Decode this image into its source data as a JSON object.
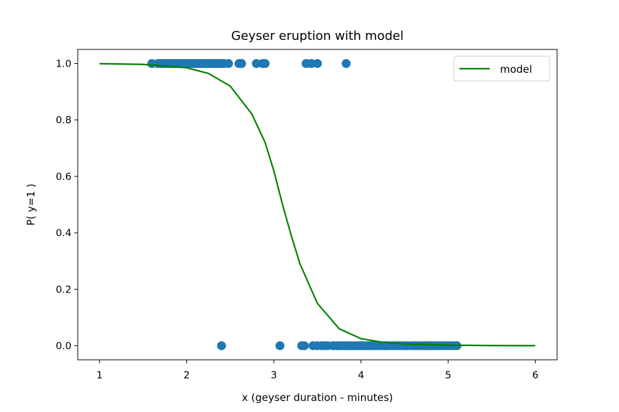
{
  "chart_data": {
    "type": "scatter",
    "title": "Geyser eruption with model",
    "xlabel": "x (geyser duration - minutes)",
    "ylabel": "P( y=1 )",
    "xlim": [
      0.75,
      6.25
    ],
    "ylim": [
      -0.05,
      1.05
    ],
    "xticks": [
      1,
      2,
      3,
      4,
      5,
      6
    ],
    "yticks": [
      0.0,
      0.2,
      0.4,
      0.6,
      0.8,
      1.0
    ],
    "xtick_labels": [
      "1",
      "2",
      "3",
      "4",
      "5",
      "6"
    ],
    "ytick_labels": [
      "0.0",
      "0.2",
      "0.4",
      "0.6",
      "0.8",
      "1.0"
    ],
    "grid": false,
    "legend": {
      "position": "top-right",
      "entries": [
        "model"
      ]
    },
    "colors": {
      "points": "#1f77b4",
      "model": "#008000"
    },
    "series": [
      {
        "type": "scatter",
        "points": [
          [
            1.6,
            1
          ],
          [
            1.67,
            1
          ],
          [
            1.7,
            1
          ],
          [
            1.73,
            1
          ],
          [
            1.75,
            1
          ],
          [
            1.78,
            1
          ],
          [
            1.8,
            1
          ],
          [
            1.83,
            1
          ],
          [
            1.85,
            1
          ],
          [
            1.87,
            1
          ],
          [
            1.9,
            1
          ],
          [
            1.92,
            1
          ],
          [
            1.95,
            1
          ],
          [
            1.97,
            1
          ],
          [
            2.0,
            1
          ],
          [
            2.03,
            1
          ],
          [
            2.05,
            1
          ],
          [
            2.08,
            1
          ],
          [
            2.1,
            1
          ],
          [
            2.13,
            1
          ],
          [
            2.15,
            1
          ],
          [
            2.17,
            1
          ],
          [
            2.2,
            1
          ],
          [
            2.23,
            1
          ],
          [
            2.25,
            1
          ],
          [
            2.27,
            1
          ],
          [
            2.3,
            1
          ],
          [
            2.33,
            1
          ],
          [
            2.35,
            1
          ],
          [
            2.38,
            1
          ],
          [
            2.4,
            1
          ],
          [
            2.43,
            1
          ],
          [
            2.48,
            1
          ],
          [
            2.6,
            1
          ],
          [
            2.63,
            1
          ],
          [
            2.8,
            1
          ],
          [
            2.87,
            1
          ],
          [
            2.9,
            1
          ],
          [
            3.37,
            1
          ],
          [
            3.43,
            1
          ],
          [
            3.5,
            1
          ],
          [
            3.83,
            1
          ],
          [
            2.4,
            0
          ],
          [
            3.07,
            0
          ],
          [
            3.32,
            0
          ],
          [
            3.35,
            0
          ],
          [
            3.45,
            0
          ],
          [
            3.5,
            0
          ],
          [
            3.55,
            0
          ],
          [
            3.58,
            0
          ],
          [
            3.62,
            0
          ],
          [
            3.68,
            0
          ],
          [
            3.72,
            0
          ],
          [
            3.75,
            0
          ],
          [
            3.78,
            0
          ],
          [
            3.82,
            0
          ],
          [
            3.85,
            0
          ],
          [
            3.88,
            0
          ],
          [
            3.92,
            0
          ],
          [
            3.95,
            0
          ],
          [
            3.98,
            0
          ],
          [
            4.0,
            0
          ],
          [
            4.03,
            0
          ],
          [
            4.07,
            0
          ],
          [
            4.1,
            0
          ],
          [
            4.13,
            0
          ],
          [
            4.17,
            0
          ],
          [
            4.2,
            0
          ],
          [
            4.23,
            0
          ],
          [
            4.27,
            0
          ],
          [
            4.3,
            0
          ],
          [
            4.33,
            0
          ],
          [
            4.37,
            0
          ],
          [
            4.4,
            0
          ],
          [
            4.43,
            0
          ],
          [
            4.47,
            0
          ],
          [
            4.5,
            0
          ],
          [
            4.53,
            0
          ],
          [
            4.57,
            0
          ],
          [
            4.6,
            0
          ],
          [
            4.63,
            0
          ],
          [
            4.67,
            0
          ],
          [
            4.7,
            0
          ],
          [
            4.73,
            0
          ],
          [
            4.77,
            0
          ],
          [
            4.8,
            0
          ],
          [
            4.83,
            0
          ],
          [
            4.87,
            0
          ],
          [
            4.9,
            0
          ],
          [
            4.93,
            0
          ],
          [
            4.97,
            0
          ],
          [
            5.0,
            0
          ],
          [
            5.03,
            0
          ],
          [
            5.07,
            0
          ],
          [
            5.1,
            0
          ]
        ]
      },
      {
        "type": "line",
        "name": "model",
        "x": [
          1.0,
          1.5,
          2.0,
          2.25,
          2.5,
          2.75,
          2.9,
          3.0,
          3.1,
          3.2,
          3.3,
          3.5,
          3.75,
          4.0,
          4.25,
          4.5,
          5.0,
          5.5,
          6.0
        ],
        "y": [
          0.9995,
          0.997,
          0.985,
          0.965,
          0.92,
          0.82,
          0.72,
          0.62,
          0.5,
          0.39,
          0.29,
          0.15,
          0.06,
          0.025,
          0.012,
          0.006,
          0.002,
          0.0005,
          0.0002
        ]
      }
    ]
  }
}
